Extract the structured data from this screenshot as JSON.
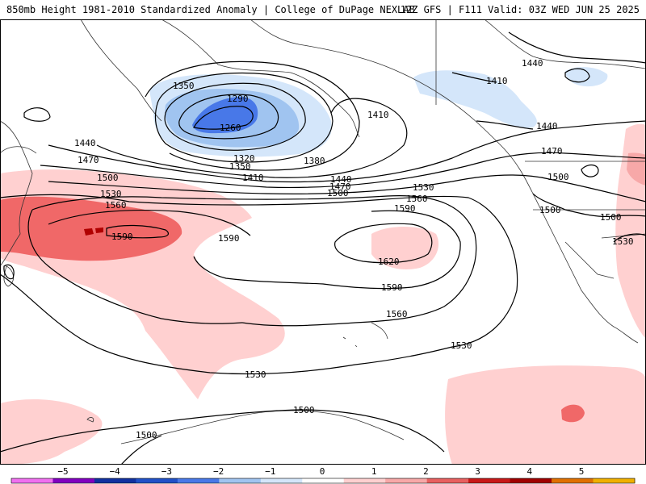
{
  "header": {
    "left_title": "850mb Height 1981-2010 Standardized Anomaly | College of DuPage NEXLAB",
    "right_title": "12Z GFS | F111 Valid: 03Z WED JUN 25 2025"
  },
  "contour_labels": {
    "l1290": "1290",
    "l1260": "1260",
    "l1350a": "1350",
    "l1320": "1320",
    "l1350b": "1350",
    "l1380": "1380",
    "l1410a": "1410",
    "l1410b": "1410",
    "l1410c": "1410",
    "l1440a": "1440",
    "l1440b": "1440",
    "l1440c": "1440",
    "l1440d": "1440",
    "l1470a": "1470",
    "l1470b": "1470",
    "l1470c": "1470",
    "l1500a": "1500",
    "l1500b": "1500",
    "l1500c": "1500",
    "l1500d": "1500",
    "l1500e": "1500",
    "l1500f": "1500",
    "l1500g": "1500",
    "l1530a": "1530",
    "l1530b": "1530",
    "l1530c": "1530",
    "l1530d": "1530",
    "l1530e": "1530",
    "l1560a": "1560",
    "l1560b": "1560",
    "l1560c": "1560",
    "l1590a": "1590",
    "l1590b": "1590",
    "l1590c": "1590",
    "l1590d": "1590",
    "l1620": "1620"
  },
  "colorbar": {
    "ticks": [
      "−5",
      "−4",
      "−3",
      "−2",
      "−1",
      "0",
      "1",
      "2",
      "3",
      "4",
      "5"
    ],
    "colors": [
      "#f070f0",
      "#8000c0",
      "#1030a0",
      "#2050c8",
      "#4878e8",
      "#a0c4f0",
      "#d4e6fa",
      "#ffffff",
      "#ffd0d0",
      "#f7a8a8",
      "#e86060",
      "#c81818",
      "#a00000",
      "#e07000",
      "#f0b000"
    ]
  }
}
